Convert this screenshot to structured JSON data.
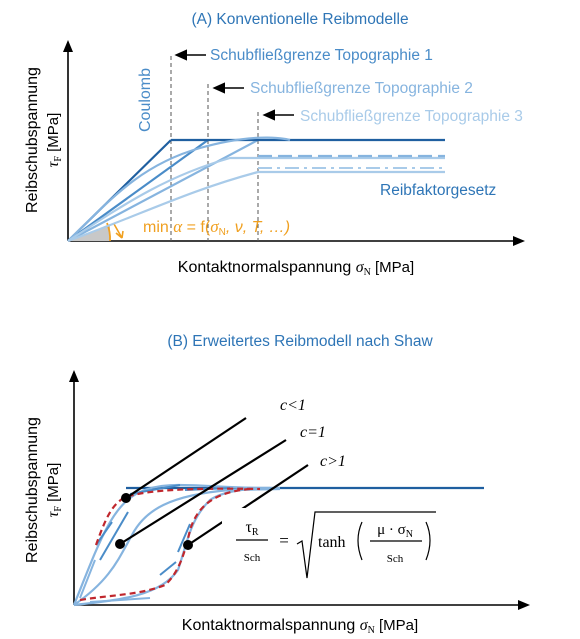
{
  "panel_a": {
    "title": "(A) Konventionelle Reibmodelle",
    "ylabel_line1": "Reibschubspannung",
    "ylabel_sym": "τ",
    "ylabel_sub": "F",
    "ylabel_unit": " [MPa]",
    "xlabel_text": "Kontaktnormalspannung ",
    "xlabel_sym": "σ",
    "xlabel_sub": "N",
    "xlabel_unit": " [MPa]",
    "coulomb": "Coulomb",
    "topo1": "Schubfließgrenze Topographie 1",
    "topo2": "Schubfließgrenze Topographie 2",
    "topo3": "Schubfließgrenze Topographie 3",
    "reibfaktor": "Reibfaktorgesetz",
    "alpha_min": "min ",
    "alpha_sym": "α",
    "alpha_eq": " = f(",
    "alpha_sigma": "σ",
    "alpha_sigma_sub": "N",
    "alpha_rest": ", ν, T, …)"
  },
  "panel_b": {
    "title": "(B) Erweitertes Reibmodell nach Shaw",
    "ylabel_line1": "Reibschubspannung",
    "ylabel_sym": "τ",
    "ylabel_sub": "F",
    "ylabel_unit": " [MPa]",
    "xlabel_text": "Kontaktnormalspannung ",
    "xlabel_sym": "σ",
    "xlabel_sub": "N",
    "xlabel_unit": " [MPa]",
    "c_lt": "c<1",
    "c_eq": "c=1",
    "c_gt": "c>1",
    "eq_tau": "τ",
    "eq_tau_sub": "R",
    "eq_den_left": "Sch",
    "eq_equals": "=",
    "eq_tanh": "tanh",
    "eq_num_right": "μ · σ",
    "eq_num_right_sub": "N",
    "eq_den_right": "Sch"
  },
  "colors": {
    "dark_blue": "#1f5fa0",
    "mid_blue": "#4a8cc8",
    "light_blue": "#86b4df",
    "lighter_blue": "#a9cbe9",
    "orange": "#f0a020",
    "red_dash": "#c0272d",
    "title_blue": "#2e75b6"
  }
}
